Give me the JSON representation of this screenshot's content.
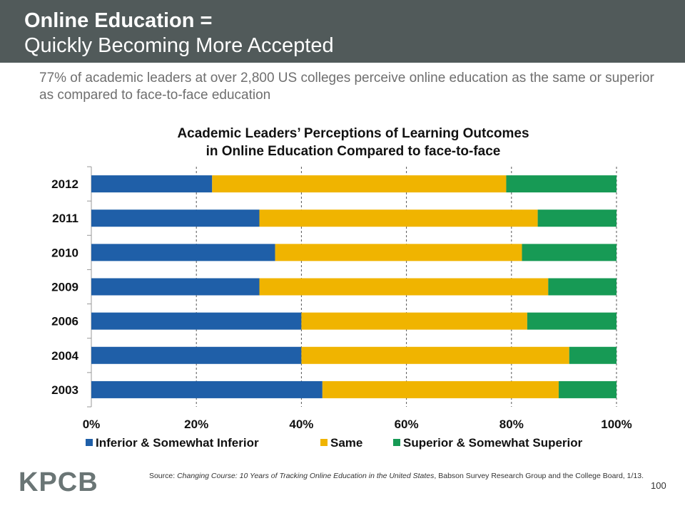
{
  "header": {
    "title_line1": "Online Education =",
    "title_line2": "Quickly Becoming More Accepted"
  },
  "subtitle": "77% of academic leaders at over 2,800 US colleges perceive online education as the same or superior as compared to face-to-face education",
  "chart_data": {
    "type": "bar",
    "orientation": "horizontal",
    "stacked": true,
    "title_line1": "Academic Leaders’ Perceptions of Learning Outcomes",
    "title_line2": "in Online Education Compared to face-to-face",
    "categories": [
      "2012",
      "2011",
      "2010",
      "2009",
      "2006",
      "2004",
      "2003"
    ],
    "series": [
      {
        "name": "Inferior & Somewhat Inferior",
        "color": "#1f5fa8",
        "values": [
          23,
          32,
          35,
          32,
          40,
          40,
          44
        ]
      },
      {
        "name": "Same",
        "color": "#f0b400",
        "values": [
          56,
          53,
          47,
          55,
          43,
          51,
          45
        ]
      },
      {
        "name": "Superior & Somewhat Superior",
        "color": "#179a55",
        "values": [
          21,
          15,
          18,
          13,
          17,
          9,
          11
        ]
      }
    ],
    "x_ticks": [
      "0%",
      "20%",
      "40%",
      "60%",
      "80%",
      "100%"
    ],
    "xlim": [
      0,
      100
    ],
    "grid": true,
    "legend_position": "bottom"
  },
  "footer": {
    "logo": "KPCB",
    "source_prefix": "Source: ",
    "source_italic": "Changing Course: 10 Years of Tracking Online Education in the United States",
    "source_rest": ", Babson Survey Research Group and the College Board, 1/13.",
    "page_number": "100"
  }
}
